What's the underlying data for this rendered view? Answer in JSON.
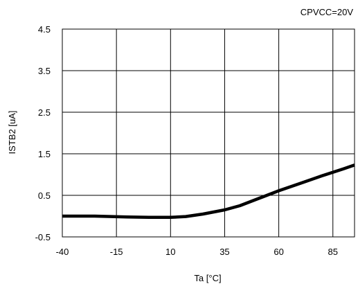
{
  "chart_data": {
    "type": "line",
    "annotation": "CPVCC=20V",
    "title": "",
    "xlabel": "Ta [°C]",
    "ylabel": "ISTB2 [uA]",
    "xlim": [
      -40,
      95
    ],
    "ylim": [
      -0.5,
      4.5
    ],
    "x_ticks": [
      -40,
      -15,
      10,
      35,
      60,
      85
    ],
    "x_tick_labels": [
      "-40",
      "-15",
      "10",
      "35",
      "60",
      "85"
    ],
    "y_ticks": [
      -0.5,
      0.5,
      1.5,
      2.5,
      3.5,
      4.5
    ],
    "y_tick_labels": [
      "-0.5",
      "0.5",
      "1.5",
      "2.5",
      "3.5",
      "4.5"
    ],
    "grid": true,
    "series": [
      {
        "x": [
          -40,
          -25,
          -10,
          0,
          10,
          17,
          25,
          35,
          42,
          50,
          60,
          70,
          80,
          90,
          95
        ],
        "y": [
          0.0,
          0.0,
          -0.02,
          -0.03,
          -0.03,
          -0.01,
          0.05,
          0.15,
          0.25,
          0.41,
          0.61,
          0.79,
          0.97,
          1.14,
          1.23
        ]
      }
    ],
    "colors": {
      "line": "#000000",
      "grid": "#000000",
      "frame": "#000000"
    }
  }
}
